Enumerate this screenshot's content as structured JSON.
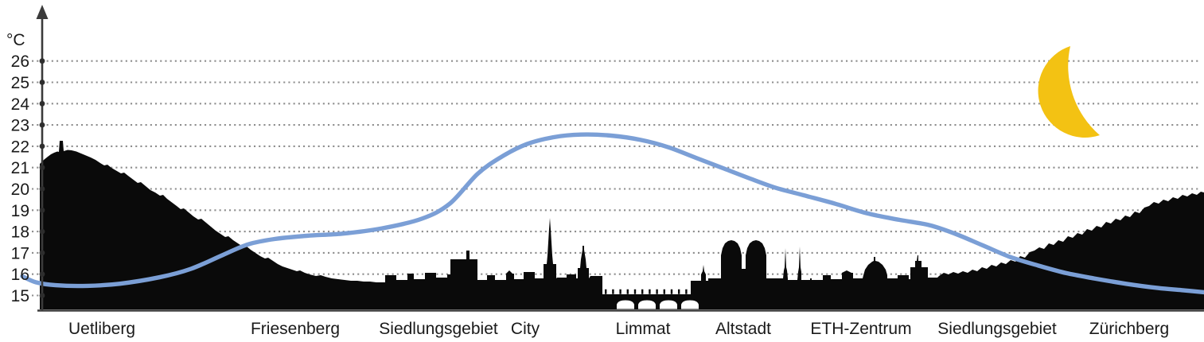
{
  "chart": {
    "y_axis": {
      "unit_label": "°C",
      "tick_values": [
        26,
        25,
        24,
        23,
        22,
        21,
        20,
        19,
        18,
        17,
        16,
        15
      ]
    },
    "x_axis": {
      "labels": [
        "Uetliberg",
        "Friesenberg",
        "Siedlungsgebiet",
        "City",
        "Limmat",
        "Altstadt",
        "ETH-Zentrum",
        "Siedlungsgebiet",
        "Zürichberg"
      ]
    },
    "icons": {
      "moon": "crescent-moon-icon"
    },
    "colors": {
      "curve": "#7B9FD6",
      "moon": "#F3C213",
      "silhouette": "#0a0a0a",
      "grid": "#8d8d8d",
      "axis": "#3b3b3b",
      "text": "#1a1a1a",
      "background": "#ffffff"
    }
  },
  "chart_data": {
    "type": "line",
    "title": "",
    "xlabel": "",
    "ylabel": "°C",
    "ylim": [
      15,
      26
    ],
    "yticks": [
      15,
      16,
      17,
      18,
      19,
      20,
      21,
      22,
      23,
      24,
      25,
      26
    ],
    "grid": "horizontal dotted line at every 1 °C from 15 to 26",
    "legend": "none",
    "night_indicator": "crescent moon, top right",
    "categories": [
      "Uetliberg",
      "Friesenberg",
      "Siedlungsgebiet",
      "City",
      "Limmat",
      "Altstadt",
      "ETH-Zentrum",
      "Siedlungsgebiet",
      "Zürichberg"
    ],
    "values_at_categories_c": [
      15.5,
      17.8,
      19.0,
      22.1,
      22.3,
      20.6,
      18.9,
      17.1,
      15.6
    ],
    "peak_c": 22.5,
    "min_c": 15.2,
    "series": [
      {
        "points": [
          [
            28,
            15.9
          ],
          [
            45,
            15.62
          ],
          [
            70,
            15.48
          ],
          [
            110,
            15.45
          ],
          [
            150,
            15.55
          ],
          [
            200,
            15.85
          ],
          [
            240,
            16.25
          ],
          [
            280,
            16.9
          ],
          [
            312,
            17.4
          ],
          [
            345,
            17.65
          ],
          [
            385,
            17.8
          ],
          [
            430,
            17.9
          ],
          [
            480,
            18.15
          ],
          [
            530,
            18.6
          ],
          [
            565,
            19.3
          ],
          [
            600,
            20.7
          ],
          [
            630,
            21.5
          ],
          [
            662,
            22.1
          ],
          [
            695,
            22.42
          ],
          [
            730,
            22.55
          ],
          [
            768,
            22.5
          ],
          [
            805,
            22.3
          ],
          [
            840,
            21.95
          ],
          [
            875,
            21.45
          ],
          [
            910,
            20.95
          ],
          [
            945,
            20.45
          ],
          [
            975,
            20.05
          ],
          [
            1010,
            19.7
          ],
          [
            1050,
            19.3
          ],
          [
            1090,
            18.85
          ],
          [
            1130,
            18.55
          ],
          [
            1168,
            18.3
          ],
          [
            1200,
            17.9
          ],
          [
            1235,
            17.35
          ],
          [
            1270,
            16.8
          ],
          [
            1305,
            16.4
          ],
          [
            1340,
            16.05
          ],
          [
            1375,
            15.8
          ],
          [
            1415,
            15.55
          ],
          [
            1455,
            15.35
          ],
          [
            1485,
            15.25
          ],
          [
            1513,
            15.15
          ]
        ]
      }
    ]
  }
}
